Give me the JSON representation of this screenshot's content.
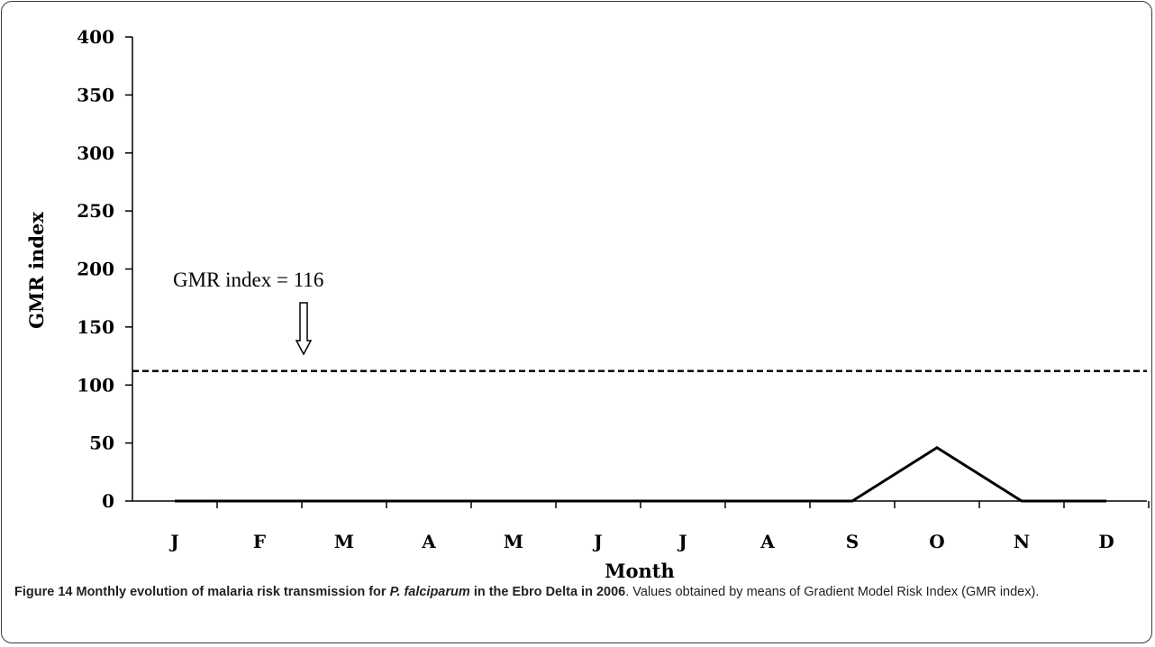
{
  "chart_data": {
    "type": "line",
    "ylabel": "GMR index",
    "xlabel": "Month",
    "categories": [
      "J",
      "F",
      "M",
      "A",
      "M",
      "J",
      "J",
      "A",
      "S",
      "O",
      "N",
      "D"
    ],
    "series": [
      {
        "values": [
          0,
          0,
          0,
          0,
          0,
          0,
          0,
          0,
          0,
          46,
          0,
          0
        ]
      }
    ],
    "ylim": [
      0,
      400
    ],
    "yticks": [
      "0",
      "50",
      "100",
      "150",
      "200",
      "250",
      "300",
      "350",
      "400"
    ],
    "threshold": {
      "value": 112,
      "style": "dashed"
    },
    "annotation": {
      "text": "GMR index = 116",
      "arrow": "down"
    },
    "grid": false,
    "colors": {
      "line": "#000000",
      "axis": "#000000"
    }
  },
  "caption": {
    "fig_label": "Figure 14",
    "title_pre": "Monthly evolution of malaria risk transmission for",
    "species": "P. falciparum",
    "title_post": "in the Ebro Delta in 2006",
    "body": ". Values obtained by means of Gradient Model Risk Index (GMR index)."
  }
}
